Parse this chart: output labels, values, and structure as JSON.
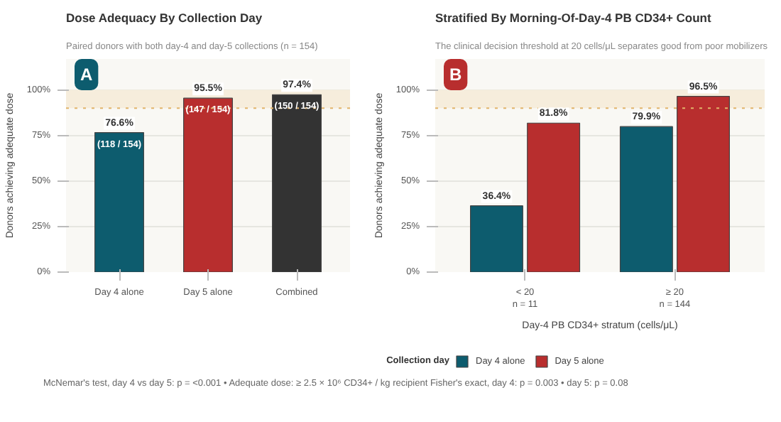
{
  "chart_data": [
    {
      "type": "bar",
      "title": "Dose Adequacy By Collection Day",
      "subtitle": "Paired donors with both day-4 and day-5 collections (n = 154)",
      "ylabel": "Donors achieving adequate dose",
      "categories": [
        "Day 4 alone",
        "Day 5 alone",
        "Combined"
      ],
      "values": [
        76.6,
        95.5,
        97.4
      ],
      "colors": [
        "#0d5c6e",
        "#b82e2e",
        "#333333"
      ],
      "value_labels": [
        "76.6%",
        "95.5%",
        "97.4%"
      ],
      "ylim": [
        0,
        117
      ],
      "yticks": [
        {
          "value": 0,
          "label": "0%"
        },
        {
          "value": 25,
          "label": "25%"
        },
        {
          "value": 50,
          "label": "50%"
        },
        {
          "value": 75,
          "label": "75%"
        },
        {
          "value": 100,
          "label": "100%"
        }
      ],
      "grid": "y",
      "bands": [
        {
          "axis": "y",
          "from": 90,
          "to": 100,
          "color": "#f6eddc"
        }
      ],
      "ref_lines": [
        {
          "axis": "y",
          "value": 90,
          "color": "#e2b46a",
          "line_style": "dotted"
        }
      ],
      "annotations": [
        "A",
        "(118 / 154)",
        "(147 / 154)",
        "(150 / 154)",
        "McNemar's test, day 4 vs day 5: p = <0.001  •  Adequate dose: ≥ 2.5 × 10⁶ CD34+ / kg recipient Fisher's exact, day 4: p = 0.003  •  day 5: p = 0.08"
      ]
    },
    {
      "type": "bar",
      "title": "Stratified By Morning-Of-Day-4 PB CD34+ Count",
      "subtitle": "The clinical decision threshold at 20 cells/μL separates good from poor mobilizers",
      "ylabel": "Donors achieving adequate dose",
      "xlabel": "Day-4 PB CD34+ stratum (cells/μL)",
      "legend_title": "Collection day",
      "categories": [
        "< 20\nn = 11",
        "≥ 20\nn = 144"
      ],
      "series": [
        {
          "name": "Day 4 alone",
          "color": "#0d5c6e",
          "values": [
            36.4,
            79.9
          ],
          "value_labels": [
            "36.4%",
            "79.9%"
          ]
        },
        {
          "name": "Day 5 alone",
          "color": "#b82e2e",
          "values": [
            81.8,
            96.5
          ],
          "value_labels": [
            "81.8%",
            "96.5%"
          ]
        }
      ],
      "ylim": [
        0,
        117
      ],
      "yticks": [
        {
          "value": 0,
          "label": "0%"
        },
        {
          "value": 25,
          "label": "25%"
        },
        {
          "value": 50,
          "label": "50%"
        },
        {
          "value": 75,
          "label": "75%"
        },
        {
          "value": 100,
          "label": "100%"
        }
      ],
      "grid": "y",
      "legend": "bottom",
      "bands": [
        {
          "axis": "y",
          "from": 90,
          "to": 100,
          "color": "#f6eddc"
        }
      ],
      "ref_lines": [
        {
          "axis": "y",
          "value": 90,
          "color": "#e2b46a",
          "line_style": "dotted"
        }
      ],
      "annotations": [
        "B"
      ]
    }
  ]
}
